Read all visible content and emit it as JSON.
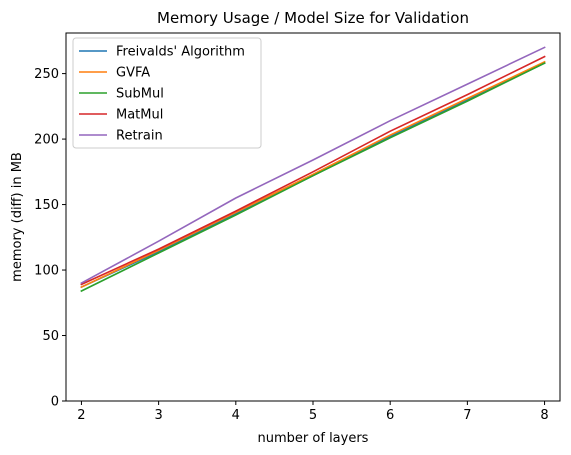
{
  "chart_data": {
    "type": "line",
    "title": "Memory Usage / Model Size for Validation",
    "xlabel": "number of layers",
    "ylabel": "memory (diff) in MB",
    "x": [
      2,
      3,
      4,
      5,
      6,
      7,
      8
    ],
    "xlim": [
      1.8,
      8.2
    ],
    "ylim": [
      0,
      281
    ],
    "xticks": [
      "2",
      "3",
      "4",
      "5",
      "6",
      "7",
      "8"
    ],
    "yticks": [
      "0",
      "50",
      "100",
      "150",
      "200",
      "250"
    ],
    "grid": false,
    "legend_placement": "top-left",
    "series": [
      {
        "name": "Freivalds' Algorithm",
        "color": "#1f77b4",
        "values": [
          87,
          114,
          143,
          172,
          202,
          230,
          258
        ]
      },
      {
        "name": "GVFA",
        "color": "#ff7f0e",
        "values": [
          87,
          115,
          144,
          173,
          203,
          231,
          259
        ]
      },
      {
        "name": "SubMul",
        "color": "#2ca02c",
        "values": [
          84,
          113,
          142,
          172,
          201,
          229,
          258
        ]
      },
      {
        "name": "MatMul",
        "color": "#d62728",
        "values": [
          89,
          116,
          145,
          175,
          206,
          234,
          263
        ]
      },
      {
        "name": "Retrain",
        "color": "#9467bd",
        "values": [
          90,
          122,
          155,
          184,
          214,
          242,
          270
        ]
      }
    ]
  }
}
